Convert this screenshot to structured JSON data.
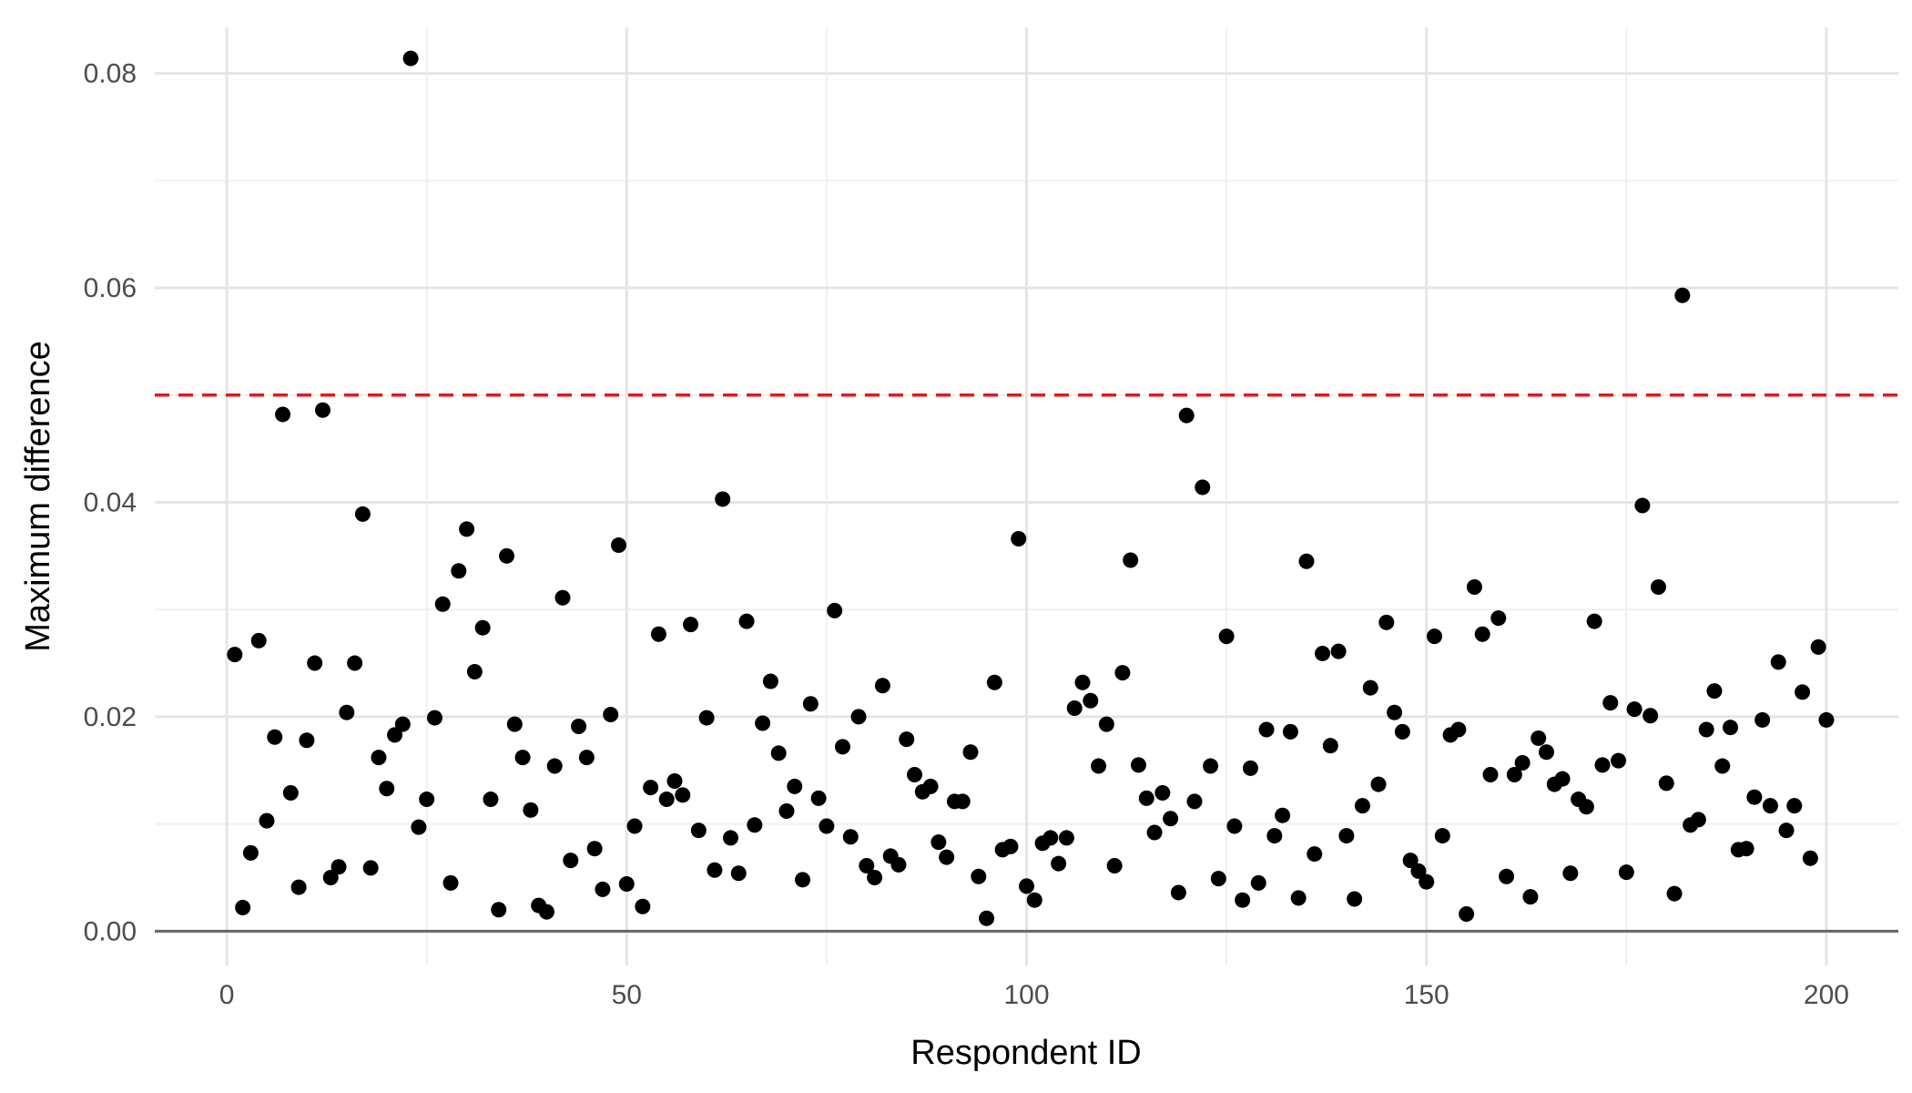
{
  "chart_data": {
    "type": "scatter",
    "title": "",
    "xlabel": "Respondent ID",
    "ylabel": "Maximum difference",
    "xlim": [
      -9,
      209
    ],
    "ylim": [
      -0.0032,
      0.0843
    ],
    "x_ticks": [
      0,
      50,
      100,
      150,
      200
    ],
    "x_tick_labels": [
      "0",
      "50",
      "100",
      "150",
      "200"
    ],
    "x_minor_ticks": [
      25,
      75,
      125,
      175
    ],
    "y_ticks": [
      0.0,
      0.02,
      0.04,
      0.06,
      0.08
    ],
    "y_tick_labels": [
      "0.00",
      "0.02",
      "0.04",
      "0.06",
      "0.08"
    ],
    "y_minor_ticks": [
      0.01,
      0.03,
      0.05,
      0.07
    ],
    "grid": true,
    "baseline_y": 0,
    "reference_line": {
      "y": 0.05,
      "style": "dashed",
      "color": "#e41a1c"
    },
    "point_color": "#000000",
    "points": [
      [
        1,
        0.0258
      ],
      [
        2,
        0.0022
      ],
      [
        3,
        0.0073
      ],
      [
        4,
        0.0271
      ],
      [
        5,
        0.0103
      ],
      [
        6,
        0.0181
      ],
      [
        7,
        0.0482
      ],
      [
        8,
        0.0129
      ],
      [
        9,
        0.0041
      ],
      [
        10,
        0.0178
      ],
      [
        11,
        0.025
      ],
      [
        12,
        0.0486
      ],
      [
        13,
        0.005
      ],
      [
        14,
        0.006
      ],
      [
        15,
        0.0204
      ],
      [
        16,
        0.025
      ],
      [
        17,
        0.0389
      ],
      [
        18,
        0.0059
      ],
      [
        19,
        0.0162
      ],
      [
        20,
        0.0133
      ],
      [
        21,
        0.0183
      ],
      [
        22,
        0.0193
      ],
      [
        23,
        0.0814
      ],
      [
        24,
        0.0097
      ],
      [
        25,
        0.0123
      ],
      [
        26,
        0.0199
      ],
      [
        27,
        0.0305
      ],
      [
        28,
        0.0045
      ],
      [
        29,
        0.0336
      ],
      [
        30,
        0.0375
      ],
      [
        31,
        0.0242
      ],
      [
        32,
        0.0283
      ],
      [
        33,
        0.0123
      ],
      [
        34,
        0.002
      ],
      [
        35,
        0.035
      ],
      [
        36,
        0.0193
      ],
      [
        37,
        0.0162
      ],
      [
        38,
        0.0113
      ],
      [
        39,
        0.0024
      ],
      [
        40,
        0.0018
      ],
      [
        41,
        0.0154
      ],
      [
        42,
        0.0311
      ],
      [
        43,
        0.0066
      ],
      [
        44,
        0.0191
      ],
      [
        45,
        0.0162
      ],
      [
        46,
        0.0077
      ],
      [
        47,
        0.0039
      ],
      [
        48,
        0.0202
      ],
      [
        49,
        0.036
      ],
      [
        50,
        0.0044
      ],
      [
        51,
        0.0098
      ],
      [
        52,
        0.0023
      ],
      [
        53,
        0.0134
      ],
      [
        54,
        0.0277
      ],
      [
        55,
        0.0123
      ],
      [
        56,
        0.014
      ],
      [
        57,
        0.0127
      ],
      [
        58,
        0.0286
      ],
      [
        59,
        0.0094
      ],
      [
        60,
        0.0199
      ],
      [
        61,
        0.0057
      ],
      [
        62,
        0.0403
      ],
      [
        63,
        0.0087
      ],
      [
        64,
        0.0054
      ],
      [
        65,
        0.0289
      ],
      [
        66,
        0.0099
      ],
      [
        67,
        0.0194
      ],
      [
        68,
        0.0233
      ],
      [
        69,
        0.0166
      ],
      [
        70,
        0.0112
      ],
      [
        71,
        0.0135
      ],
      [
        72,
        0.0048
      ],
      [
        73,
        0.0212
      ],
      [
        74,
        0.0124
      ],
      [
        75,
        0.0098
      ],
      [
        76,
        0.0299
      ],
      [
        77,
        0.0172
      ],
      [
        78,
        0.0088
      ],
      [
        79,
        0.02
      ],
      [
        80,
        0.0061
      ],
      [
        81,
        0.005
      ],
      [
        82,
        0.0229
      ],
      [
        83,
        0.007
      ],
      [
        84,
        0.0062
      ],
      [
        85,
        0.0179
      ],
      [
        86,
        0.0146
      ],
      [
        87,
        0.013
      ],
      [
        88,
        0.0135
      ],
      [
        89,
        0.0083
      ],
      [
        90,
        0.0069
      ],
      [
        91,
        0.0121
      ],
      [
        92,
        0.0121
      ],
      [
        93,
        0.0167
      ],
      [
        94,
        0.0051
      ],
      [
        95,
        0.0012
      ],
      [
        96,
        0.0232
      ],
      [
        97,
        0.0076
      ],
      [
        98,
        0.0079
      ],
      [
        99,
        0.0366
      ],
      [
        100,
        0.0042
      ],
      [
        101,
        0.0029
      ],
      [
        102,
        0.0082
      ],
      [
        103,
        0.0087
      ],
      [
        104,
        0.0063
      ],
      [
        105,
        0.0087
      ],
      [
        106,
        0.0208
      ],
      [
        107,
        0.0232
      ],
      [
        108,
        0.0215
      ],
      [
        109,
        0.0154
      ],
      [
        110,
        0.0193
      ],
      [
        111,
        0.0061
      ],
      [
        112,
        0.0241
      ],
      [
        113,
        0.0346
      ],
      [
        114,
        0.0155
      ],
      [
        115,
        0.0124
      ],
      [
        116,
        0.0092
      ],
      [
        117,
        0.0129
      ],
      [
        118,
        0.0105
      ],
      [
        119,
        0.0036
      ],
      [
        120,
        0.0481
      ],
      [
        121,
        0.0121
      ],
      [
        122,
        0.0414
      ],
      [
        123,
        0.0154
      ],
      [
        124,
        0.0049
      ],
      [
        125,
        0.0275
      ],
      [
        126,
        0.0098
      ],
      [
        127,
        0.0029
      ],
      [
        128,
        0.0152
      ],
      [
        129,
        0.0045
      ],
      [
        130,
        0.0188
      ],
      [
        131,
        0.0089
      ],
      [
        132,
        0.0108
      ],
      [
        133,
        0.0186
      ],
      [
        134,
        0.0031
      ],
      [
        135,
        0.0345
      ],
      [
        136,
        0.0072
      ],
      [
        137,
        0.0259
      ],
      [
        138,
        0.0173
      ],
      [
        139,
        0.0261
      ],
      [
        140,
        0.0089
      ],
      [
        141,
        0.003
      ],
      [
        142,
        0.0117
      ],
      [
        143,
        0.0227
      ],
      [
        144,
        0.0137
      ],
      [
        145,
        0.0288
      ],
      [
        146,
        0.0204
      ],
      [
        147,
        0.0186
      ],
      [
        148,
        0.0066
      ],
      [
        149,
        0.0056
      ],
      [
        150,
        0.0046
      ],
      [
        151,
        0.0275
      ],
      [
        152,
        0.0089
      ],
      [
        153,
        0.0183
      ],
      [
        154,
        0.0188
      ],
      [
        155,
        0.0016
      ],
      [
        156,
        0.0321
      ],
      [
        157,
        0.0277
      ],
      [
        158,
        0.0146
      ],
      [
        159,
        0.0292
      ],
      [
        160,
        0.0051
      ],
      [
        161,
        0.0146
      ],
      [
        162,
        0.0157
      ],
      [
        163,
        0.0032
      ],
      [
        164,
        0.018
      ],
      [
        165,
        0.0167
      ],
      [
        166,
        0.0137
      ],
      [
        167,
        0.0142
      ],
      [
        168,
        0.0054
      ],
      [
        169,
        0.0123
      ],
      [
        170,
        0.0116
      ],
      [
        171,
        0.0289
      ],
      [
        172,
        0.0155
      ],
      [
        173,
        0.0213
      ],
      [
        174,
        0.0159
      ],
      [
        175,
        0.0055
      ],
      [
        176,
        0.0207
      ],
      [
        177,
        0.0397
      ],
      [
        178,
        0.0201
      ],
      [
        179,
        0.0321
      ],
      [
        180,
        0.0138
      ],
      [
        181,
        0.0035
      ],
      [
        182,
        0.0593
      ],
      [
        183,
        0.0099
      ],
      [
        184,
        0.0104
      ],
      [
        185,
        0.0188
      ],
      [
        186,
        0.0224
      ],
      [
        187,
        0.0154
      ],
      [
        188,
        0.019
      ],
      [
        189,
        0.0076
      ],
      [
        190,
        0.0077
      ],
      [
        191,
        0.0125
      ],
      [
        192,
        0.0197
      ],
      [
        193,
        0.0117
      ],
      [
        194,
        0.0251
      ],
      [
        195,
        0.0094
      ],
      [
        196,
        0.0117
      ],
      [
        197,
        0.0223
      ],
      [
        198,
        0.0068
      ],
      [
        199,
        0.0265
      ],
      [
        200,
        0.0197
      ]
    ]
  }
}
